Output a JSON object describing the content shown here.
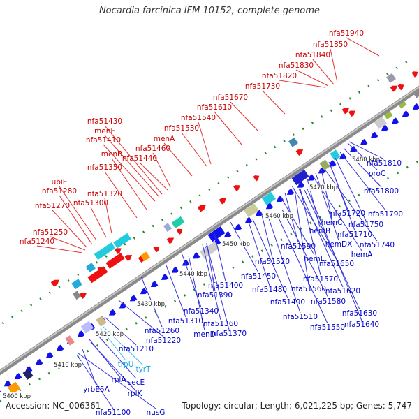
{
  "title": "Nocardia farcinica IFM 10152, complete genome",
  "footer": {
    "accession": "Accession: NC_006361",
    "topology": "Topology: circular; Length: 6,021,225 bp; Genes: 5,747"
  },
  "colors": {
    "forward_label": "#cc0000",
    "reverse_label": "#0000cc",
    "rna_label": "#22aadd",
    "forward_gene": "#ee1111",
    "reverse_gene": "#1111ee",
    "backbone": "#8a8a8a",
    "tick_dot": "#228822"
  },
  "ticks": [
    "5400 kbp",
    "5410 kbp",
    "5420 kbp",
    "5430 kbp",
    "5440 kbp",
    "5450 kbp",
    "5460 kbp",
    "5470 kbp",
    "5480 kbp"
  ],
  "forward_labels": [
    "nfa51940",
    "nfa51850",
    "nfa51840",
    "nfa51830",
    "nfa51820",
    "nfa51730",
    "nfa51670",
    "nfa51610",
    "nfa51540",
    "nfa51530",
    "menA",
    "nfa51460",
    "nfa51440",
    "nfa51430",
    "menE",
    "nfa51410",
    "menB",
    "nfa51350",
    "ubiE",
    "nfa51280",
    "nfa51320",
    "nfa51300",
    "nfa51270",
    "nfa51250",
    "nfa51240"
  ],
  "reverse_labels": [
    "nfa51810",
    "proC",
    "nfa51800",
    "nfa51790",
    "nfa51720",
    "nfa51750",
    "hemC",
    "nfa51710",
    "hemB",
    "hemDX",
    "nfa51740",
    "hemA",
    "nfa51590",
    "nfa51650",
    "hemL",
    "nfa51520",
    "nfa51570",
    "nfa51450",
    "nfa51560",
    "nfa51620",
    "nfa51400",
    "nfa51480",
    "nfa51390",
    "nfa51580",
    "nfa51490",
    "nfa51630",
    "nfa51510",
    "nfa51640",
    "nfa51550",
    "nfa51340",
    "nfa51360",
    "nfa51310",
    "nfa51370",
    "nfa51260",
    "menD",
    "nfa51220",
    "nfa51210",
    "secE",
    "rplA",
    "rplK",
    "yrbE5A",
    "nfa51100",
    "nusG"
  ],
  "rna_labels": [
    "trpU",
    "tyrT"
  ]
}
